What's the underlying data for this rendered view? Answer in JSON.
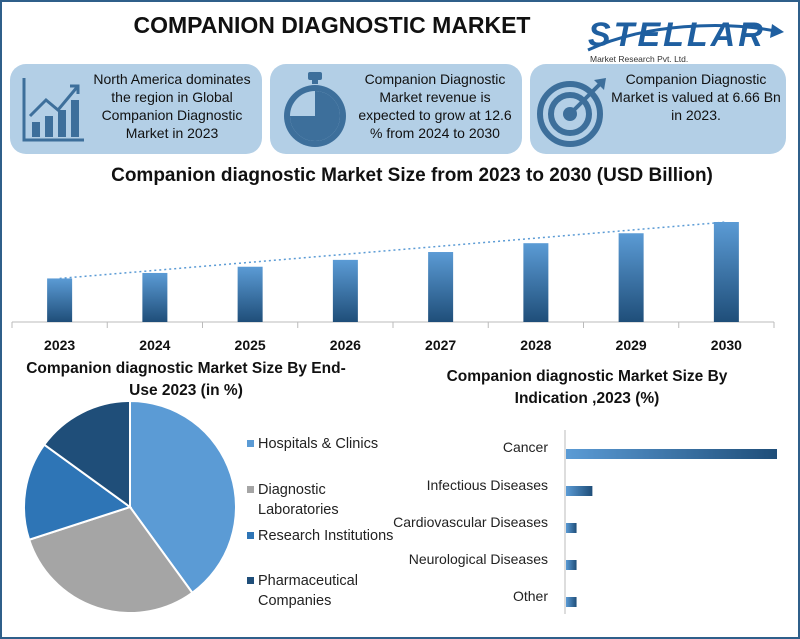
{
  "header": {
    "title": "COMPANION DIAGNOSTIC MARKET",
    "logo_name": "STELLAR",
    "logo_tagline": "Market Research Pvt. Ltd."
  },
  "info_boxes": [
    {
      "icon": "bar-growth-icon",
      "text": "North America dominates the region in Global Companion Diagnostic Market in 2023"
    },
    {
      "icon": "stopwatch-icon",
      "text": "Companion Diagnostic Market revenue is expected to grow at 12.6 % from 2024 to 2030"
    },
    {
      "icon": "target-icon",
      "text": "Companion Diagnostic Market is valued at 6.66 Bn in 2023."
    }
  ],
  "colors": {
    "bar_light": "#5b9bd5",
    "bar_dark": "#1f4e79",
    "pie_hospitals": "#5b9bd5",
    "pie_diagnostic": "#a5a5a5",
    "pie_research": "#2e75b6",
    "pie_pharma": "#1f4e79",
    "box_bg": "#b3cfe6"
  },
  "chart_data": [
    {
      "type": "bar",
      "title": "Companion diagnostic Market Size from 2023 to 2030 (USD Billion)",
      "categories": [
        "2023",
        "2024",
        "2025",
        "2026",
        "2027",
        "2028",
        "2029",
        "2030"
      ],
      "values": [
        6.66,
        7.5,
        8.45,
        9.5,
        10.7,
        12.05,
        13.57,
        15.29
      ],
      "trendline": true
    },
    {
      "type": "pie",
      "title": "Companion diagnostic Market Size By End-Use 2023 (in %)",
      "categories": [
        "Hospitals & Clinics",
        "Diagnostic Laboratories",
        "Research Institutions",
        "Pharmaceutical Companies"
      ],
      "values": [
        40,
        30,
        15,
        15
      ]
    },
    {
      "type": "bar",
      "orientation": "horizontal",
      "title": "Companion diagnostic Market Size By Indication ,2023 (%)",
      "categories": [
        "Cancer",
        "Infectious Diseases",
        "Cardiovascular Diseases",
        "Neurological Diseases",
        "Other"
      ],
      "values": [
        80,
        10,
        4,
        4,
        4
      ]
    }
  ]
}
